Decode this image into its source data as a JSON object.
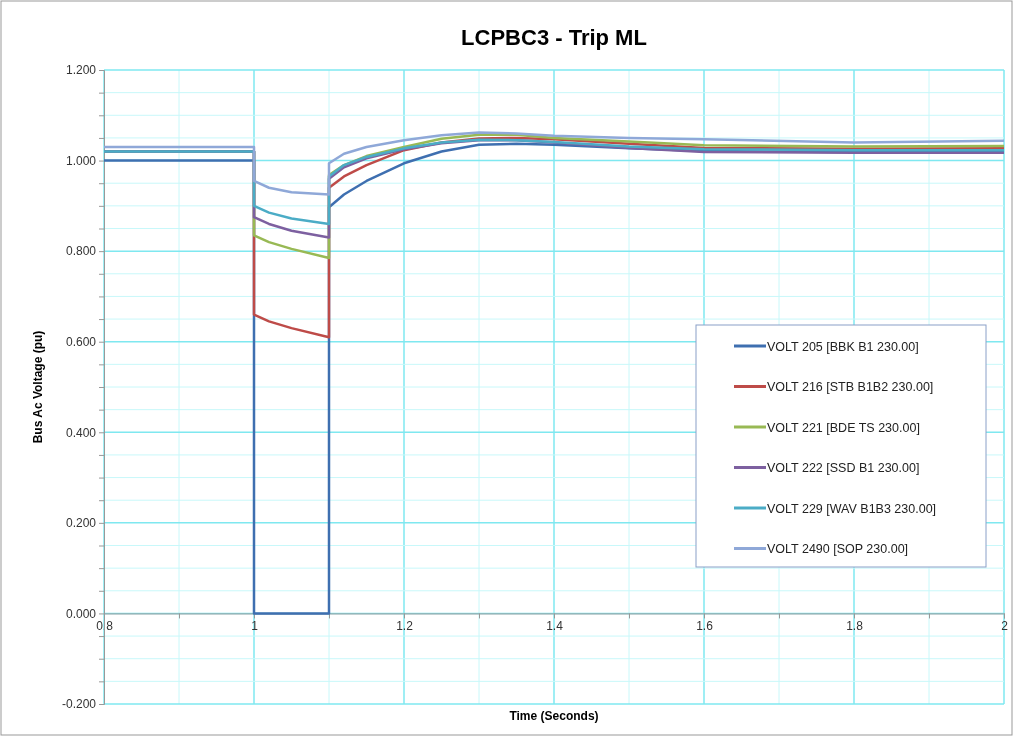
{
  "chart_data": {
    "type": "line",
    "title": "LCPBC3 - Trip ML",
    "xlabel": "Time (Seconds)",
    "ylabel": "Bus Ac Voltage (pu)",
    "x": [
      0.8,
      1.0,
      1.0,
      1.02,
      1.05,
      1.1,
      1.1,
      1.12,
      1.15,
      1.2,
      1.25,
      1.3,
      1.35,
      1.4,
      1.5,
      1.6,
      1.8,
      2.0
    ],
    "series": [
      {
        "name": "VOLT 205 [BBK B1 230.00]",
        "color": "#3e6fb0",
        "values": [
          1.0,
          1.0,
          0,
          0,
          0,
          0,
          0.897,
          0.925,
          0.955,
          0.994,
          1.02,
          1.035,
          1.037,
          1.035,
          1.027,
          1.021,
          1.019,
          1.019
        ]
      },
      {
        "name": "VOLT 216 [STB B1B2 230.00]",
        "color": "#be4b48",
        "values": [
          1.02,
          1.02,
          0.66,
          0.645,
          0.63,
          0.61,
          0.94,
          0.965,
          0.99,
          1.023,
          1.04,
          1.049,
          1.05,
          1.047,
          1.037,
          1.028,
          1.026,
          1.027
        ]
      },
      {
        "name": "VOLT 221 [BDE TS 230.00]",
        "color": "#98b954",
        "values": [
          1.02,
          1.02,
          0.835,
          0.82,
          0.805,
          0.785,
          0.968,
          0.99,
          1.01,
          1.03,
          1.048,
          1.057,
          1.057,
          1.05,
          1.042,
          1.034,
          1.031,
          1.032
        ]
      },
      {
        "name": "VOLT 222 [SSD B1 230.00]",
        "color": "#7d60a0",
        "values": [
          1.02,
          1.02,
          0.875,
          0.86,
          0.845,
          0.83,
          0.96,
          0.985,
          1.005,
          1.025,
          1.038,
          1.045,
          1.045,
          1.04,
          1.028,
          1.019,
          1.017,
          1.017
        ]
      },
      {
        "name": "VOLT 229 [WAV B1B3 230.00]",
        "color": "#4bacc6",
        "values": [
          1.02,
          1.02,
          0.9,
          0.885,
          0.872,
          0.86,
          0.965,
          0.99,
          1.008,
          1.027,
          1.04,
          1.046,
          1.045,
          1.041,
          1.031,
          1.025,
          1.023,
          1.023
        ]
      },
      {
        "name": "VOLT 2490 [SOP 230.00]",
        "color": "#8fa8d8",
        "values": [
          1.03,
          1.03,
          0.955,
          0.94,
          0.93,
          0.925,
          0.994,
          1.015,
          1.03,
          1.045,
          1.056,
          1.062,
          1.06,
          1.055,
          1.05,
          1.047,
          1.04,
          1.044
        ]
      }
    ],
    "xlim": [
      0.8,
      2
    ],
    "xticks": [
      {
        "value": 0.8,
        "label": "0.8"
      },
      {
        "value": 0.9,
        "label": null
      },
      {
        "value": 1,
        "label": "1"
      },
      {
        "value": 1.1,
        "label": null
      },
      {
        "value": 1.2,
        "label": "1.2"
      },
      {
        "value": 1.3,
        "label": null
      },
      {
        "value": 1.4,
        "label": "1.4"
      },
      {
        "value": 1.5,
        "label": null
      },
      {
        "value": 1.6,
        "label": "1.6"
      },
      {
        "value": 1.7,
        "label": null
      },
      {
        "value": 1.8,
        "label": "1.8"
      },
      {
        "value": 1.9,
        "label": null
      },
      {
        "value": 2,
        "label": "2"
      }
    ],
    "ylim": [
      -0.2,
      1.2
    ],
    "yticks": [
      {
        "value": -0.2,
        "label": "-0.200"
      },
      {
        "value": -0.15,
        "label": null
      },
      {
        "value": -0.1,
        "label": null
      },
      {
        "value": -0.05,
        "label": null
      },
      {
        "value": 0,
        "label": "0.000"
      },
      {
        "value": 0.05,
        "label": null
      },
      {
        "value": 0.1,
        "label": null
      },
      {
        "value": 0.15,
        "label": null
      },
      {
        "value": 0.2,
        "label": "0.200"
      },
      {
        "value": 0.25,
        "label": null
      },
      {
        "value": 0.3,
        "label": null
      },
      {
        "value": 0.35,
        "label": null
      },
      {
        "value": 0.4,
        "label": "0.400"
      },
      {
        "value": 0.45,
        "label": null
      },
      {
        "value": 0.5,
        "label": null
      },
      {
        "value": 0.55,
        "label": null
      },
      {
        "value": 0.6,
        "label": "0.600"
      },
      {
        "value": 0.65,
        "label": null
      },
      {
        "value": 0.7,
        "label": null
      },
      {
        "value": 0.75,
        "label": null
      },
      {
        "value": 0.8,
        "label": "0.800"
      },
      {
        "value": 0.85,
        "label": null
      },
      {
        "value": 0.9,
        "label": null
      },
      {
        "value": 0.95,
        "label": null
      },
      {
        "value": 1,
        "label": "1.000"
      },
      {
        "value": 1.05,
        "label": null
      },
      {
        "value": 1.1,
        "label": null
      },
      {
        "value": 1.15,
        "label": null
      },
      {
        "value": 1.2,
        "label": "1.200"
      }
    ],
    "grid": true,
    "legend": "right",
    "marker": "none",
    "line_style": "solid"
  }
}
